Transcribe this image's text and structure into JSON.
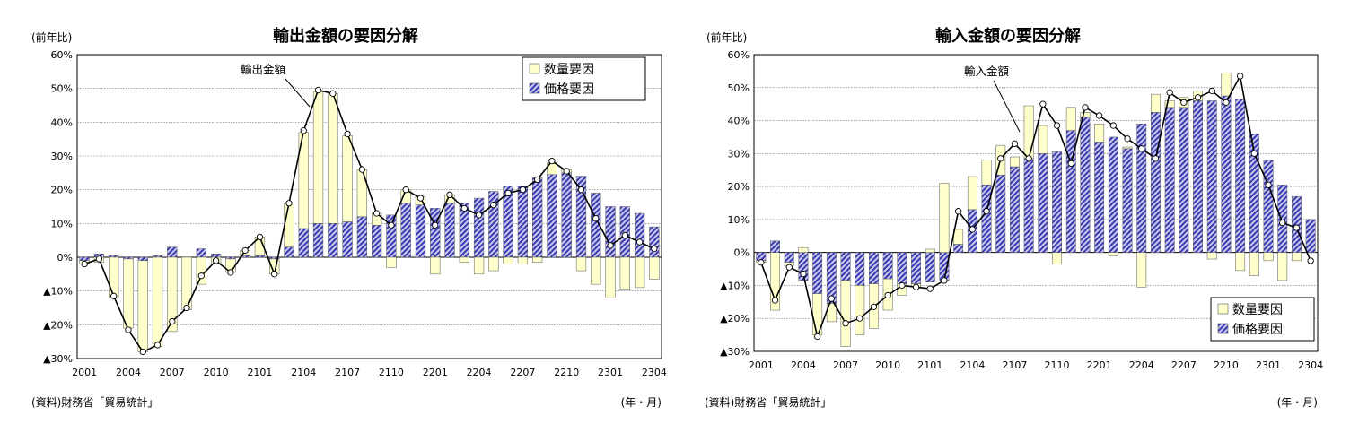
{
  "chart_data": [
    {
      "type": "bar",
      "title": "輸出金額の要因分解",
      "ylabel": "(前年比)",
      "xlabel": "(年・月)",
      "source": "(資料)財務省「貿易統計」",
      "annotation": "輸出金額",
      "legend_position": "top-right",
      "ylim": [
        -30,
        60
      ],
      "y_ticks": [
        {
          "v": 60,
          "label": "60%"
        },
        {
          "v": 50,
          "label": "50%"
        },
        {
          "v": 40,
          "label": "40%"
        },
        {
          "v": 30,
          "label": "30%"
        },
        {
          "v": 20,
          "label": "20%"
        },
        {
          "v": 10,
          "label": "10%"
        },
        {
          "v": 0,
          "label": "0%"
        },
        {
          "v": -10,
          "label": "▲10%"
        },
        {
          "v": -20,
          "label": "▲20%"
        },
        {
          "v": -30,
          "label": "▲30%"
        }
      ],
      "x_tick_labels": [
        "2001",
        "2004",
        "2007",
        "2010",
        "2101",
        "2104",
        "2107",
        "2110",
        "2201",
        "2204",
        "2207",
        "2210",
        "2301",
        "2304"
      ],
      "series": [
        {
          "name": "数量要因",
          "type": "bar",
          "values": [
            -1.0,
            -1.5,
            -12.0,
            -20.5,
            -27.0,
            -26.5,
            -22.0,
            -15.5,
            -8.0,
            -2.0,
            -4.0,
            1.5,
            5.5,
            -4.5,
            13.0,
            28.5,
            39.0,
            38.5,
            25.5,
            14.0,
            3.5,
            -3.0,
            4.0,
            2.5,
            -5.0,
            2.5,
            -1.5,
            -5.0,
            -4.0,
            -2.0,
            -2.0,
            -1.5,
            3.5,
            1.0,
            -4.0,
            -8.0,
            -12.0,
            -9.5,
            -9.0,
            -6.5
          ]
        },
        {
          "name": "価格要因",
          "type": "bar",
          "values": [
            -1.0,
            1.0,
            0.5,
            -0.5,
            -1.0,
            0.5,
            3.0,
            0.0,
            2.5,
            1.0,
            -0.5,
            0.5,
            0.5,
            -0.5,
            3.0,
            8.5,
            10.0,
            10.0,
            10.5,
            12.0,
            9.5,
            12.5,
            16.0,
            15.5,
            14.5,
            16.0,
            16.0,
            17.5,
            19.5,
            21.0,
            21.0,
            23.5,
            24.5,
            25.0,
            24.0,
            19.0,
            15.0,
            15.0,
            13.0,
            9.0
          ]
        },
        {
          "name": "輸出金額",
          "type": "line",
          "values": [
            -2.0,
            -0.5,
            -11.5,
            -21.5,
            -28.0,
            -26.0,
            -19.0,
            -15.0,
            -5.5,
            -1.0,
            -4.5,
            2.0,
            6.0,
            -5.0,
            16.0,
            37.5,
            49.5,
            48.5,
            36.5,
            26.0,
            13.0,
            9.5,
            20.0,
            17.5,
            9.5,
            18.5,
            14.5,
            12.5,
            15.5,
            19.0,
            20.0,
            23.0,
            28.5,
            25.5,
            20.0,
            11.5,
            3.5,
            6.5,
            4.5,
            2.5
          ]
        }
      ]
    },
    {
      "type": "bar",
      "title": "輸入金額の要因分解",
      "ylabel": "(前年比)",
      "xlabel": "(年・月)",
      "source": "(資料)財務省「貿易統計」",
      "annotation": "輸入金額",
      "legend_position": "bottom-right",
      "ylim": [
        -30,
        60
      ],
      "y_ticks": [
        {
          "v": 60,
          "label": "60%"
        },
        {
          "v": 50,
          "label": "50%"
        },
        {
          "v": 40,
          "label": "40%"
        },
        {
          "v": 30,
          "label": "30%"
        },
        {
          "v": 20,
          "label": "20%"
        },
        {
          "v": 10,
          "label": "10%"
        },
        {
          "v": 0,
          "label": "0%"
        },
        {
          "v": -10,
          "label": "▲10%"
        },
        {
          "v": -20,
          "label": "▲20%"
        },
        {
          "v": -30,
          "label": "▲30%"
        }
      ],
      "x_tick_labels": [
        "2001",
        "2004",
        "2007",
        "2010",
        "2101",
        "2104",
        "2107",
        "2110",
        "2201",
        "2204",
        "2207",
        "2210",
        "2301",
        "2304"
      ],
      "series": [
        {
          "name": "数量要因",
          "type": "bar",
          "values": [
            -0.5,
            -17.5,
            -1.0,
            1.5,
            -12.5,
            -5.5,
            -20.0,
            -15.0,
            -13.5,
            -9.5,
            -3.5,
            -1.0,
            1.0,
            21.0,
            4.5,
            10.0,
            7.5,
            9.0,
            3.0,
            16.0,
            8.5,
            -3.5,
            7.0,
            1.5,
            5.5,
            -1.0,
            0.5,
            -10.5,
            5.5,
            2.0,
            3.0,
            3.0,
            -2.0,
            7.0,
            -5.5,
            -7.0,
            -2.5,
            -8.5,
            -2.5,
            0.0
          ]
        },
        {
          "name": "価格要因",
          "type": "bar",
          "values": [
            -2.5,
            3.5,
            -3.0,
            -8.5,
            -12.5,
            -15.5,
            -8.5,
            -10.0,
            -9.5,
            -8.0,
            -9.5,
            -9.5,
            -9.0,
            -8.5,
            2.5,
            13.0,
            20.5,
            23.5,
            26.0,
            28.5,
            30.0,
            30.5,
            37.0,
            41.0,
            33.5,
            35.0,
            31.5,
            39.0,
            42.5,
            44.0,
            44.0,
            46.0,
            46.0,
            47.5,
            46.5,
            36.0,
            28.0,
            20.5,
            17.0,
            10.0
          ]
        },
        {
          "name": "輸入金額",
          "type": "line",
          "values": [
            -3.0,
            -14.5,
            -4.5,
            -6.5,
            -25.5,
            -14.0,
            -21.5,
            -20.0,
            -16.5,
            -13.0,
            -10.0,
            -10.5,
            -11.0,
            -8.5,
            12.5,
            7.0,
            12.5,
            28.5,
            33.0,
            28.5,
            45.0,
            38.5,
            27.0,
            44.0,
            41.5,
            38.5,
            34.5,
            31.5,
            28.5,
            48.5,
            45.5,
            47.0,
            49.0,
            45.5,
            53.5,
            30.0,
            20.5,
            9.0,
            7.5,
            -2.5
          ]
        }
      ]
    }
  ]
}
